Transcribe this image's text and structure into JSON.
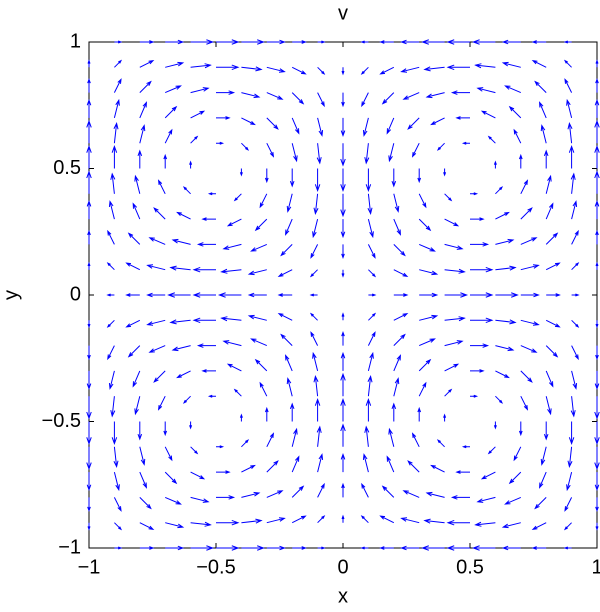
{
  "chart_data": {
    "type": "quiver",
    "title": "v",
    "x_label": "x",
    "y_label": "y",
    "color": "#0000ff",
    "xlim": [
      -1,
      1
    ],
    "ylim": [
      -1,
      1
    ],
    "xticks": [
      {
        "value": -1,
        "label": "−1"
      },
      {
        "value": -0.5,
        "label": "−0.5"
      },
      0,
      0.5,
      1
    ],
    "yticks": [
      {
        "value": -1,
        "label": "−1"
      },
      {
        "value": -0.5,
        "label": "−0.5"
      },
      0,
      0.5,
      1
    ],
    "x": [
      -1,
      -0.9,
      -0.8,
      -0.7,
      -0.6,
      -0.5,
      -0.4,
      -0.3,
      -0.2,
      -0.1,
      0,
      0.1,
      0.2,
      0.3,
      0.4,
      0.5,
      0.6,
      0.7,
      0.8,
      0.9,
      1
    ],
    "y": [
      -1,
      -0.9,
      -0.8,
      -0.7,
      -0.6,
      -0.5,
      -0.4,
      -0.3,
      -0.2,
      -0.1,
      0,
      0.1,
      0.2,
      0.3,
      0.4,
      0.5,
      0.6,
      0.7,
      0.8,
      0.9,
      1
    ],
    "u": [
      [
        0,
        0.3,
        0.6,
        0.8,
        1,
        1,
        1,
        0.8,
        0.6,
        0.3,
        0,
        -0.3,
        -0.6,
        -0.8,
        -1,
        -1,
        -1,
        -0.8,
        -0.6,
        -0.3,
        0
      ],
      [
        0,
        0.3,
        0.6,
        0.8,
        0.9,
        1,
        0.9,
        0.8,
        0.6,
        0.3,
        0,
        -0.3,
        -0.6,
        -0.8,
        -0.9,
        -1,
        -0.9,
        -0.8,
        -0.6,
        -0.3,
        0
      ],
      [
        0,
        0.3,
        0.5,
        0.7,
        0.8,
        0.8,
        0.8,
        0.7,
        0.5,
        0.3,
        0,
        -0.3,
        -0.5,
        -0.7,
        -0.8,
        -0.8,
        -0.8,
        -0.7,
        -0.5,
        -0.3,
        0
      ],
      [
        0,
        0.2,
        0.3,
        0.5,
        0.6,
        0.6,
        0.6,
        0.5,
        0.3,
        0.2,
        0,
        -0.2,
        -0.3,
        -0.5,
        -0.6,
        -0.6,
        -0.6,
        -0.5,
        -0.3,
        -0.2,
        0
      ],
      [
        0,
        0.1,
        0.2,
        0.3,
        0.3,
        0.3,
        0.3,
        0.3,
        0.2,
        0.1,
        0,
        -0.1,
        -0.2,
        -0.3,
        -0.3,
        -0.3,
        -0.3,
        -0.3,
        -0.2,
        -0.1,
        0
      ],
      [
        0,
        0,
        0,
        0,
        0,
        0,
        0,
        0,
        0,
        0,
        0,
        0,
        0,
        0,
        0,
        0,
        0,
        0,
        0,
        0,
        0
      ],
      [
        0,
        -0.1,
        -0.2,
        -0.3,
        -0.3,
        -0.3,
        -0.3,
        -0.3,
        -0.2,
        -0.1,
        0,
        0.1,
        0.2,
        0.3,
        0.3,
        0.3,
        0.3,
        0.3,
        0.2,
        0.1,
        0
      ],
      [
        0,
        -0.2,
        -0.3,
        -0.5,
        -0.6,
        -0.6,
        -0.6,
        -0.5,
        -0.3,
        -0.2,
        0,
        0.2,
        0.3,
        0.5,
        0.6,
        0.6,
        0.6,
        0.5,
        0.3,
        0.2,
        0
      ],
      [
        0,
        -0.3,
        -0.5,
        -0.7,
        -0.8,
        -0.8,
        -0.8,
        -0.7,
        -0.5,
        -0.3,
        0,
        0.3,
        0.5,
        0.7,
        0.8,
        0.8,
        0.8,
        0.7,
        0.5,
        0.3,
        0
      ],
      [
        0,
        -0.3,
        -0.6,
        -0.8,
        -0.9,
        -1,
        -0.9,
        -0.8,
        -0.6,
        -0.3,
        0,
        0.3,
        0.6,
        0.8,
        0.9,
        1,
        0.9,
        0.8,
        0.6,
        0.3,
        0
      ],
      [
        0,
        -0.3,
        -0.6,
        -0.8,
        -1,
        -1,
        -1,
        -0.8,
        -0.6,
        -0.3,
        0,
        0.3,
        0.6,
        0.8,
        1,
        1,
        1,
        0.8,
        0.6,
        0.3,
        0
      ],
      [
        0,
        -0.3,
        -0.6,
        -0.8,
        -0.9,
        -1,
        -0.9,
        -0.8,
        -0.6,
        -0.3,
        0,
        0.3,
        0.6,
        0.8,
        0.9,
        1,
        0.9,
        0.8,
        0.6,
        0.3,
        0
      ],
      [
        0,
        -0.3,
        -0.5,
        -0.7,
        -0.8,
        -0.8,
        -0.8,
        -0.7,
        -0.5,
        -0.3,
        0,
        0.3,
        0.5,
        0.7,
        0.8,
        0.8,
        0.8,
        0.7,
        0.5,
        0.3,
        0
      ],
      [
        0,
        -0.2,
        -0.3,
        -0.5,
        -0.6,
        -0.6,
        -0.6,
        -0.5,
        -0.3,
        -0.2,
        0,
        0.2,
        0.3,
        0.5,
        0.6,
        0.6,
        0.6,
        0.5,
        0.3,
        0.2,
        0
      ],
      [
        0,
        -0.1,
        -0.2,
        -0.3,
        -0.3,
        -0.3,
        -0.3,
        -0.3,
        -0.2,
        -0.1,
        0,
        0.1,
        0.2,
        0.3,
        0.3,
        0.3,
        0.3,
        0.3,
        0.2,
        0.1,
        0
      ],
      [
        0,
        0,
        0,
        0,
        0,
        0,
        0,
        0,
        0,
        0,
        0,
        0,
        0,
        0,
        0,
        0,
        0,
        0,
        0,
        0,
        0
      ],
      [
        0,
        0.1,
        0.2,
        0.3,
        0.3,
        0.3,
        0.3,
        0.3,
        0.2,
        0.1,
        0,
        -0.1,
        -0.2,
        -0.3,
        -0.3,
        -0.3,
        -0.3,
        -0.3,
        -0.2,
        -0.1,
        0
      ],
      [
        0,
        0.2,
        0.3,
        0.5,
        0.6,
        0.6,
        0.6,
        0.5,
        0.3,
        0.2,
        0,
        -0.2,
        -0.3,
        -0.5,
        -0.6,
        -0.6,
        -0.6,
        -0.5,
        -0.3,
        -0.2,
        0
      ],
      [
        0,
        0.3,
        0.5,
        0.7,
        0.8,
        0.8,
        0.8,
        0.7,
        0.5,
        0.3,
        0,
        -0.3,
        -0.5,
        -0.7,
        -0.8,
        -0.8,
        -0.8,
        -0.7,
        -0.5,
        -0.3,
        0
      ],
      [
        0,
        0.3,
        0.6,
        0.8,
        0.9,
        1,
        0.9,
        0.8,
        0.6,
        0.3,
        0,
        -0.3,
        -0.6,
        -0.8,
        -0.9,
        -1,
        -0.9,
        -0.8,
        -0.6,
        -0.3,
        0
      ],
      [
        0,
        0.3,
        0.6,
        0.8,
        1,
        1,
        1,
        0.8,
        0.6,
        0.3,
        0,
        -0.3,
        -0.6,
        -0.8,
        -1,
        -1,
        -1,
        -0.8,
        -0.6,
        -0.3,
        0
      ]
    ],
    "v": [
      [
        0,
        0,
        0,
        0,
        0,
        0,
        0,
        0,
        0,
        0,
        0,
        0,
        0,
        0,
        0,
        0,
        0,
        0,
        0,
        0,
        0
      ],
      [
        -0.3,
        -0.3,
        -0.3,
        -0.2,
        -0.1,
        0,
        0.1,
        0.2,
        0.3,
        0.3,
        0.3,
        0.3,
        0.3,
        0.2,
        0.1,
        0,
        -0.1,
        -0.2,
        -0.3,
        -0.3,
        -0.3
      ],
      [
        -0.6,
        -0.6,
        -0.5,
        -0.3,
        -0.2,
        0,
        0.2,
        0.3,
        0.5,
        0.6,
        0.6,
        0.6,
        0.5,
        0.3,
        0.2,
        0,
        -0.2,
        -0.3,
        -0.5,
        -0.6,
        -0.6
      ],
      [
        -0.8,
        -0.8,
        -0.7,
        -0.5,
        -0.3,
        0,
        0.3,
        0.5,
        0.7,
        0.8,
        0.8,
        0.8,
        0.7,
        0.5,
        0.3,
        0,
        -0.3,
        -0.5,
        -0.7,
        -0.8,
        -0.8
      ],
      [
        -1,
        -0.9,
        -0.8,
        -0.6,
        -0.3,
        0,
        0.3,
        0.6,
        0.8,
        0.9,
        1,
        0.9,
        0.8,
        0.6,
        0.3,
        0,
        -0.3,
        -0.6,
        -0.8,
        -0.9,
        -1
      ],
      [
        -1,
        -1,
        -0.8,
        -0.6,
        -0.3,
        0,
        0.3,
        0.6,
        0.8,
        1,
        1,
        1,
        0.8,
        0.6,
        0.3,
        0,
        -0.3,
        -0.6,
        -0.8,
        -1,
        -1
      ],
      [
        -1,
        -0.9,
        -0.8,
        -0.6,
        -0.3,
        0,
        0.3,
        0.6,
        0.8,
        0.9,
        1,
        0.9,
        0.8,
        0.6,
        0.3,
        0,
        -0.3,
        -0.6,
        -0.8,
        -0.9,
        -1
      ],
      [
        -0.8,
        -0.8,
        -0.7,
        -0.5,
        -0.3,
        0,
        0.3,
        0.5,
        0.7,
        0.8,
        0.8,
        0.8,
        0.7,
        0.5,
        0.3,
        0,
        -0.3,
        -0.5,
        -0.7,
        -0.8,
        -0.8
      ],
      [
        -0.6,
        -0.6,
        -0.5,
        -0.3,
        -0.2,
        0,
        0.2,
        0.3,
        0.5,
        0.6,
        0.6,
        0.6,
        0.5,
        0.3,
        0.2,
        0,
        -0.2,
        -0.3,
        -0.5,
        -0.6,
        -0.6
      ],
      [
        -0.3,
        -0.3,
        -0.3,
        -0.2,
        -0.1,
        0,
        0.1,
        0.2,
        0.3,
        0.3,
        0.3,
        0.3,
        0.3,
        0.2,
        0.1,
        0,
        -0.1,
        -0.2,
        -0.3,
        -0.3,
        -0.3
      ],
      [
        0,
        0,
        0,
        0,
        0,
        0,
        0,
        0,
        0,
        0,
        0,
        0,
        0,
        0,
        0,
        0,
        0,
        0,
        0,
        0,
        0
      ],
      [
        0.3,
        0.3,
        0.3,
        0.2,
        0.1,
        0,
        -0.1,
        -0.2,
        -0.3,
        -0.3,
        -0.3,
        -0.3,
        -0.3,
        -0.2,
        -0.1,
        0,
        0.1,
        0.2,
        0.3,
        0.3,
        0.3
      ],
      [
        0.6,
        0.6,
        0.5,
        0.3,
        0.2,
        0,
        -0.2,
        -0.3,
        -0.5,
        -0.6,
        -0.6,
        -0.6,
        -0.5,
        -0.3,
        -0.2,
        0,
        0.2,
        0.3,
        0.5,
        0.6,
        0.6
      ],
      [
        0.8,
        0.8,
        0.7,
        0.5,
        0.3,
        0,
        -0.3,
        -0.5,
        -0.7,
        -0.8,
        -0.8,
        -0.8,
        -0.7,
        -0.5,
        -0.3,
        0,
        0.3,
        0.5,
        0.7,
        0.8,
        0.8
      ],
      [
        1,
        0.9,
        0.8,
        0.6,
        0.3,
        0,
        -0.3,
        -0.6,
        -0.8,
        -0.9,
        -1,
        -0.9,
        -0.8,
        -0.6,
        -0.3,
        0,
        0.3,
        0.6,
        0.8,
        0.9,
        1
      ],
      [
        1,
        1,
        0.8,
        0.6,
        0.3,
        0,
        -0.3,
        -0.6,
        -0.8,
        -1,
        -1,
        -1,
        -0.8,
        -0.6,
        -0.3,
        0,
        0.3,
        0.6,
        0.8,
        1,
        1
      ],
      [
        1,
        0.9,
        0.8,
        0.6,
        0.3,
        0,
        -0.3,
        -0.6,
        -0.8,
        -0.9,
        -1,
        -0.9,
        -0.8,
        -0.6,
        -0.3,
        0,
        0.3,
        0.6,
        0.8,
        0.9,
        1
      ],
      [
        0.8,
        0.8,
        0.7,
        0.5,
        0.3,
        0,
        -0.3,
        -0.5,
        -0.7,
        -0.8,
        -0.8,
        -0.8,
        -0.7,
        -0.5,
        -0.3,
        0,
        0.3,
        0.5,
        0.7,
        0.8,
        0.8
      ],
      [
        0.6,
        0.6,
        0.5,
        0.3,
        0.2,
        0,
        -0.2,
        -0.3,
        -0.5,
        -0.6,
        -0.6,
        -0.6,
        -0.5,
        -0.3,
        -0.2,
        0,
        0.2,
        0.3,
        0.5,
        0.6,
        0.6
      ],
      [
        0.3,
        0.3,
        0.3,
        0.2,
        0.1,
        0,
        -0.1,
        -0.2,
        -0.3,
        -0.3,
        -0.3,
        -0.3,
        -0.3,
        -0.2,
        -0.1,
        0,
        0.1,
        0.2,
        0.3,
        0.3,
        0.3
      ],
      [
        0,
        0,
        0,
        0,
        0,
        0,
        0,
        0,
        0,
        0,
        0,
        0,
        0,
        0,
        0,
        0,
        0,
        0,
        0,
        0,
        0
      ]
    ]
  }
}
